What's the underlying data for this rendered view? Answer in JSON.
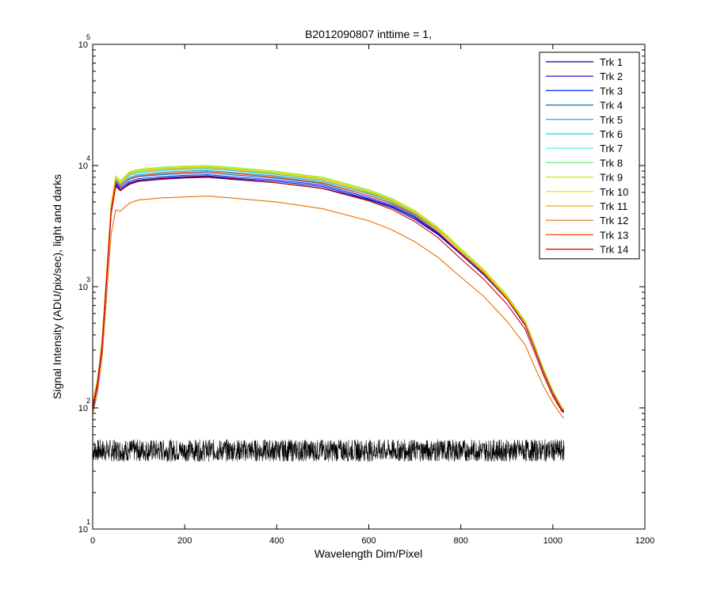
{
  "chart_data": {
    "type": "line",
    "title": "B2012090807 inttime = 1,",
    "xlabel": "Wavelength Dim/Pixel",
    "ylabel": "Signal Intensity (ADU/pix/sec), light and darks",
    "xlim": [
      0,
      1200
    ],
    "ylim": [
      10,
      100000
    ],
    "y_scale": "log",
    "x_ticks": [
      "0",
      "200",
      "400",
      "600",
      "800",
      "1000",
      "1200"
    ],
    "y_ticks": [
      {
        "base": "10",
        "exp": "1",
        "value": 10
      },
      {
        "base": "10",
        "exp": "2",
        "value": 100
      },
      {
        "base": "10",
        "exp": "3",
        "value": 1000
      },
      {
        "base": "10",
        "exp": "4",
        "value": 10000
      },
      {
        "base": "10",
        "exp": "5",
        "value": 100000
      }
    ],
    "grid": false,
    "legend_position": "top-right",
    "x": [
      0,
      10,
      20,
      30,
      40,
      50,
      60,
      80,
      100,
      150,
      200,
      250,
      300,
      400,
      500,
      600,
      650,
      700,
      750,
      800,
      850,
      900,
      940,
      960,
      980,
      1000,
      1020,
      1024
    ],
    "series": [
      {
        "name": "Trk 1",
        "color": "#00008f",
        "values": [
          95,
          150,
          300,
          1100,
          4000,
          6800,
          6200,
          7000,
          7400,
          7700,
          7900,
          8000,
          7700,
          7200,
          6500,
          5200,
          4500,
          3600,
          2700,
          1850,
          1250,
          790,
          480,
          310,
          195,
          130,
          95,
          92
        ]
      },
      {
        "name": "Trk 2",
        "color": "#0000cc",
        "values": [
          97,
          152,
          310,
          1120,
          4100,
          7000,
          6300,
          7200,
          7600,
          7900,
          8100,
          8200,
          7900,
          7400,
          6700,
          5300,
          4600,
          3700,
          2750,
          1880,
          1270,
          800,
          490,
          315,
          198,
          132,
          96,
          93
        ]
      },
      {
        "name": "Trk 3",
        "color": "#0030ff",
        "values": [
          100,
          155,
          320,
          1150,
          4200,
          7200,
          6500,
          7400,
          7800,
          8100,
          8300,
          8400,
          8100,
          7600,
          6900,
          5450,
          4700,
          3780,
          2800,
          1910,
          1290,
          810,
          500,
          320,
          200,
          134,
          97,
          94
        ]
      },
      {
        "name": "Trk 4",
        "color": "#0070c0",
        "values": [
          102,
          158,
          325,
          1170,
          4300,
          7400,
          6700,
          7700,
          8100,
          8400,
          8600,
          8700,
          8400,
          7850,
          7100,
          5650,
          4900,
          3950,
          2950,
          2000,
          1350,
          840,
          515,
          330,
          205,
          136,
          98,
          95
        ]
      },
      {
        "name": "Trk 5",
        "color": "#00a8d0",
        "values": [
          105,
          160,
          330,
          1190,
          4400,
          7600,
          6900,
          8000,
          8400,
          8800,
          9000,
          9100,
          8800,
          8200,
          7400,
          5850,
          5050,
          4050,
          3000,
          2020,
          1360,
          845,
          515,
          330,
          205,
          136,
          98,
          95
        ]
      },
      {
        "name": "Trk 6",
        "color": "#00d8e8",
        "values": [
          107,
          162,
          335,
          1200,
          4500,
          7800,
          7100,
          8300,
          8700,
          9100,
          9300,
          9400,
          9100,
          8450,
          7600,
          6000,
          5150,
          4120,
          3050,
          2040,
          1370,
          850,
          518,
          332,
          206,
          137,
          99,
          96
        ]
      },
      {
        "name": "Trk 7",
        "color": "#40f0e0",
        "values": [
          110,
          165,
          340,
          1220,
          4600,
          8000,
          7300,
          8600,
          9000,
          9400,
          9600,
          9700,
          9400,
          8700,
          7800,
          6150,
          5250,
          4180,
          3080,
          2050,
          1375,
          850,
          520,
          333,
          207,
          138,
          100,
          97
        ]
      },
      {
        "name": "Trk 8",
        "color": "#70f070",
        "values": [
          112,
          168,
          345,
          1240,
          4700,
          8200,
          7500,
          8900,
          9300,
          9700,
          9900,
          10000,
          9700,
          8950,
          8000,
          6300,
          5350,
          4250,
          3120,
          2070,
          1385,
          855,
          522,
          334,
          208,
          139,
          101,
          98
        ]
      },
      {
        "name": "Trk 9",
        "color": "#c8f000",
        "values": [
          112,
          168,
          345,
          1240,
          4700,
          8100,
          7400,
          8800,
          9200,
          9600,
          9800,
          9900,
          9600,
          8850,
          7900,
          6200,
          5300,
          4200,
          3090,
          2050,
          1370,
          845,
          515,
          330,
          205,
          137,
          100,
          97
        ]
      },
      {
        "name": "Trk 10",
        "color": "#f0e000",
        "values": [
          110,
          166,
          340,
          1230,
          4650,
          8000,
          7300,
          8700,
          9100,
          9500,
          9700,
          9800,
          9500,
          8750,
          7800,
          6100,
          5200,
          4120,
          3030,
          2010,
          1345,
          830,
          505,
          325,
          202,
          135,
          99,
          96
        ]
      },
      {
        "name": "Trk 11",
        "color": "#ffa800",
        "values": [
          108,
          164,
          335,
          1210,
          4550,
          7800,
          7100,
          8500,
          8900,
          9300,
          9500,
          9600,
          9300,
          8550,
          7650,
          5950,
          5080,
          4030,
          2960,
          1970,
          1320,
          815,
          495,
          318,
          198,
          132,
          97,
          95
        ]
      },
      {
        "name": "Trk 12",
        "color": "#e87000",
        "values": [
          90,
          130,
          250,
          800,
          2700,
          4300,
          4200,
          4900,
          5200,
          5400,
          5500,
          5600,
          5400,
          5000,
          4400,
          3500,
          2950,
          2350,
          1750,
          1200,
          830,
          520,
          330,
          220,
          150,
          110,
          85,
          82
        ]
      },
      {
        "name": "Trk 13",
        "color": "#ff4000",
        "values": [
          104,
          160,
          325,
          1180,
          4350,
          7300,
          6700,
          7800,
          8200,
          8600,
          8800,
          8900,
          8650,
          8000,
          7200,
          5650,
          4850,
          3850,
          2850,
          1900,
          1280,
          800,
          490,
          316,
          200,
          134,
          98,
          96
        ]
      },
      {
        "name": "Trk 14",
        "color": "#d00000",
        "values": [
          100,
          155,
          310,
          1120,
          4000,
          6700,
          6200,
          7100,
          7500,
          7800,
          8000,
          8100,
          7800,
          7200,
          6450,
          5100,
          4350,
          3450,
          2550,
          1700,
          1150,
          720,
          445,
          290,
          185,
          125,
          93,
          92
        ]
      }
    ],
    "darks": {
      "name": "darks",
      "color": "#000000",
      "x_range": [
        0,
        1024
      ],
      "y_low": 36,
      "y_high": 55
    }
  }
}
